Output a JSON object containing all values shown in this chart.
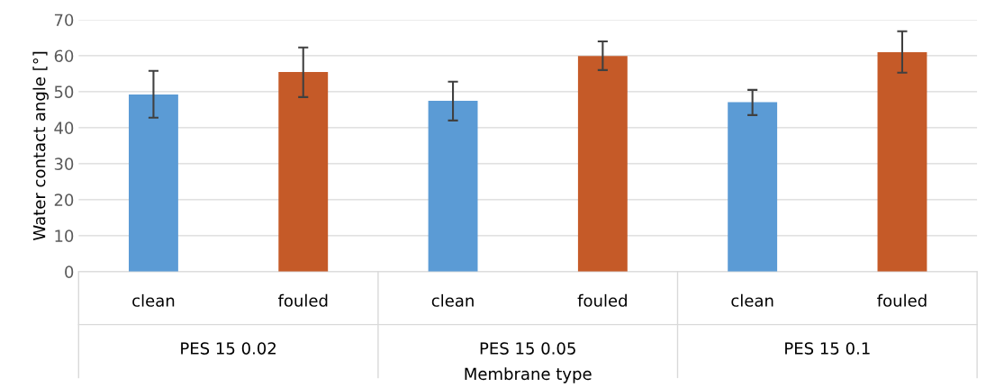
{
  "chart_data": {
    "type": "bar",
    "xlabel": "Membrane type",
    "ylabel": "Water contact angle [°]",
    "categories": [
      "clean",
      "fouled",
      "clean",
      "fouled",
      "clean",
      "fouled"
    ],
    "values": [
      49.2,
      55.5,
      47.5,
      59.9,
      47.1,
      61.0
    ],
    "colors": [
      "#5b9bd5",
      "#c55a28",
      "#5b9bd5",
      "#c55a28",
      "#5b9bd5",
      "#c55a28"
    ],
    "errors": [
      [
        42.8,
        55.8
      ],
      [
        48.5,
        62.3
      ],
      [
        42.0,
        52.8
      ],
      [
        56.0,
        64.0
      ],
      [
        43.5,
        50.5
      ],
      [
        55.3,
        66.8
      ]
    ],
    "annotations": [
      "PES 15 0.02",
      "PES 15 0.05",
      "PES 15 0.1"
    ],
    "ylim": [
      0,
      70
    ],
    "yticks": [
      0,
      10,
      20,
      30,
      40,
      50,
      60,
      70
    ],
    "grid": "y",
    "legend": false
  }
}
